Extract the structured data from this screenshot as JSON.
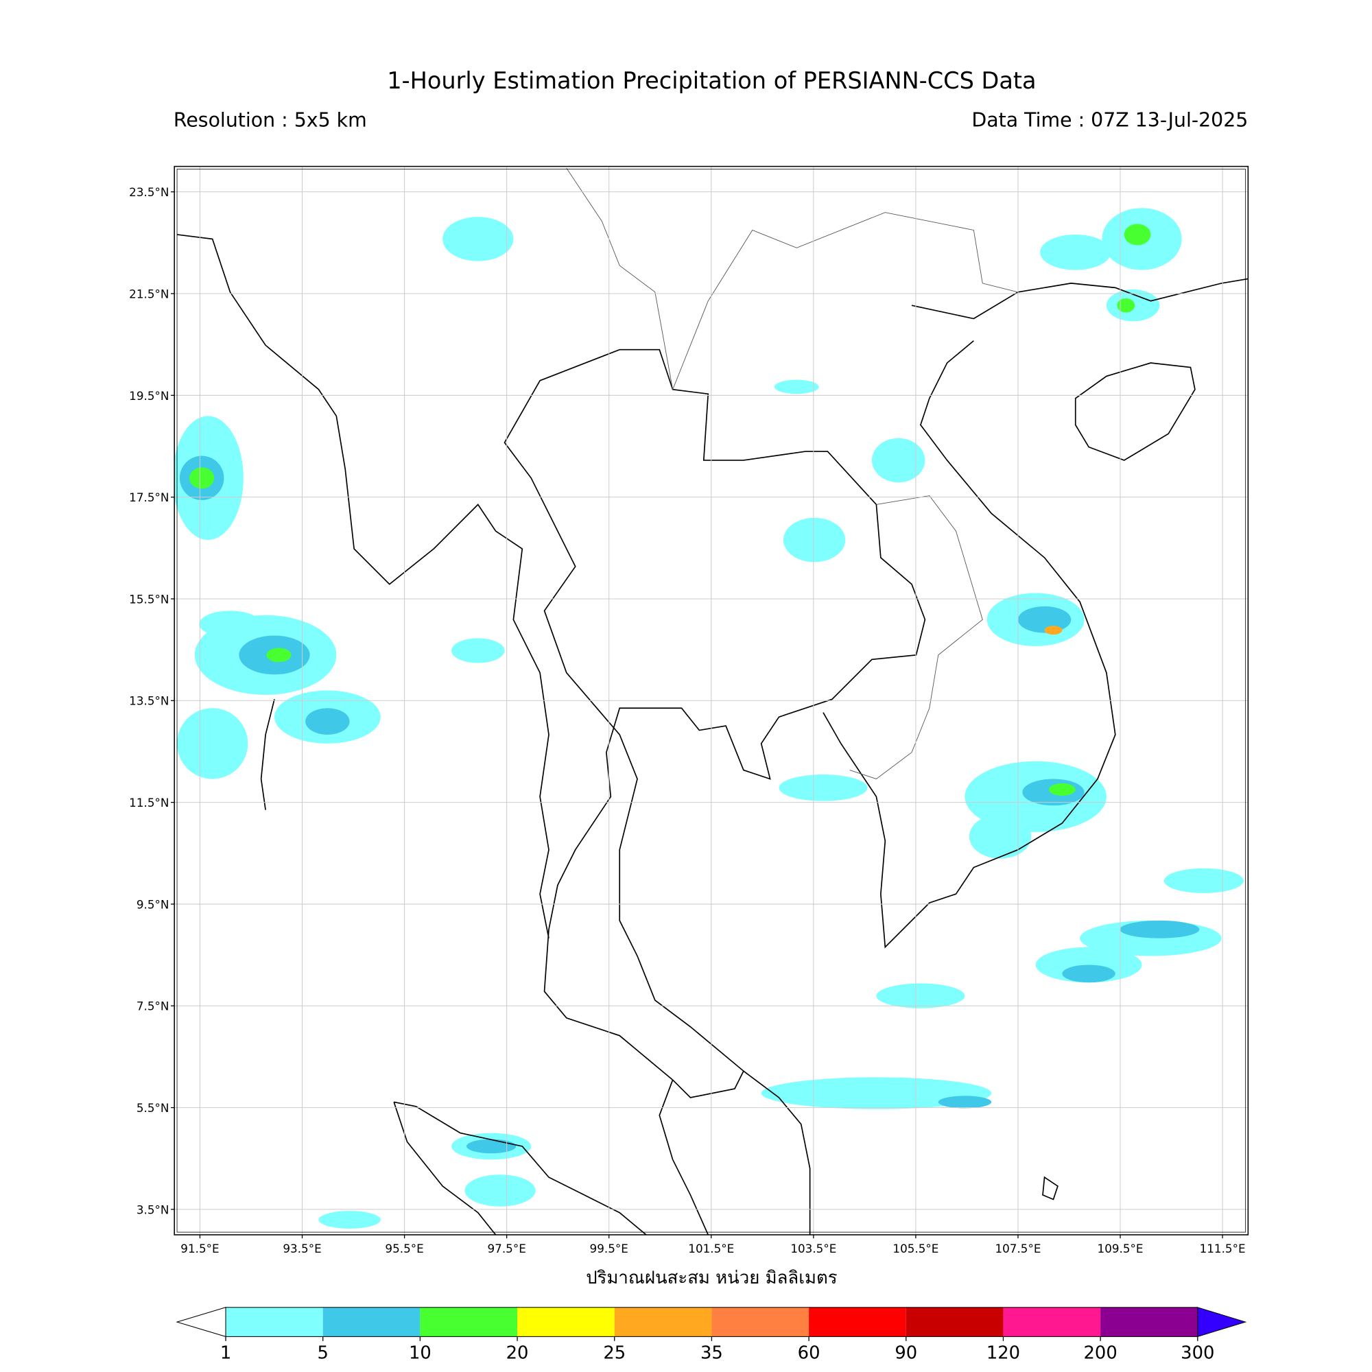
{
  "header": {
    "title": "1-Hourly Estimation Precipitation of PERSIANN-CCS Data",
    "resolution": "Resolution : 5x5 km",
    "data_time": "Data Time : 07Z 13-Jul-2025"
  },
  "map": {
    "lonlim": [
      91,
      112
    ],
    "latlim": [
      3,
      24
    ],
    "lat_ticks": [
      {
        "value": 23.5,
        "label": "23.5°N"
      },
      {
        "value": 21.5,
        "label": "21.5°N"
      },
      {
        "value": 19.5,
        "label": "19.5°N"
      },
      {
        "value": 17.5,
        "label": "17.5°N"
      },
      {
        "value": 15.5,
        "label": "15.5°N"
      },
      {
        "value": 13.5,
        "label": "13.5°N"
      },
      {
        "value": 11.5,
        "label": "11.5°N"
      },
      {
        "value": 9.5,
        "label": "9.5°N"
      },
      {
        "value": 7.5,
        "label": "7.5°N"
      },
      {
        "value": 5.5,
        "label": "5.5°N"
      },
      {
        "value": 3.5,
        "label": "3.5°N"
      }
    ],
    "lon_ticks": [
      {
        "value": 91.5,
        "label": "91.5°E"
      },
      {
        "value": 93.5,
        "label": "93.5°E"
      },
      {
        "value": 95.5,
        "label": "95.5°E"
      },
      {
        "value": 97.5,
        "label": "97.5°E"
      },
      {
        "value": 99.5,
        "label": "99.5°E"
      },
      {
        "value": 101.5,
        "label": "101.5°E"
      },
      {
        "value": 103.5,
        "label": "103.5°E"
      },
      {
        "value": 105.5,
        "label": "105.5°E"
      },
      {
        "value": 107.5,
        "label": "107.5°E"
      },
      {
        "value": 109.5,
        "label": "109.5°E"
      },
      {
        "value": 111.5,
        "label": "111.5°E"
      }
    ],
    "x_label": "ปริมาณฝนสะสม หน่วย มิลลิเมตร"
  },
  "colorbar": {
    "levels": [
      1,
      5,
      10,
      20,
      25,
      35,
      60,
      90,
      120,
      200,
      300
    ],
    "colors": [
      "#80ffff",
      "#40c8e8",
      "#48ff30",
      "#ffff00",
      "#ffa820",
      "#ff8040",
      "#ff0000",
      "#c80000",
      "#ff1890",
      "#8b0090"
    ],
    "under_color": "#ffffff",
    "over_color": "#3300ff"
  }
}
